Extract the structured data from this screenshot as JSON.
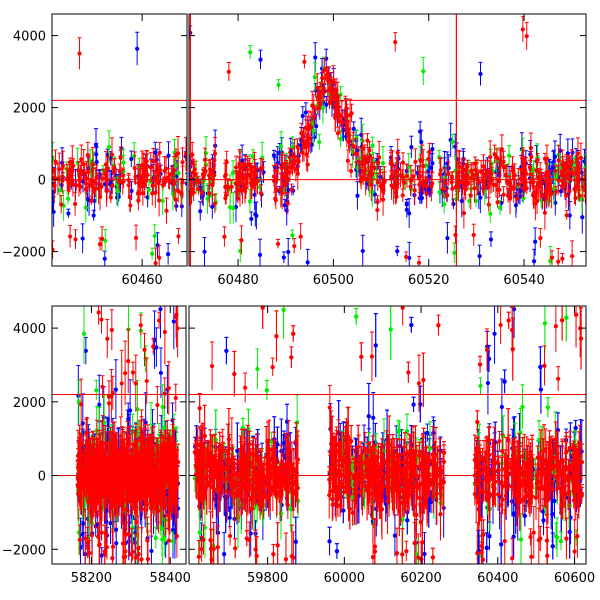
{
  "chart_data": [
    {
      "type": "scatter",
      "panel": "top",
      "title": "",
      "xlabel": "",
      "ylabel": "",
      "ylim": [
        -2400,
        4600
      ],
      "yticks": [
        -2000,
        0,
        2000,
        4000
      ],
      "x_tick_labels": [
        "60460",
        "60480",
        "60500",
        "60520",
        "60540"
      ],
      "y_tick_labels": [
        "−2000",
        "0",
        "2000",
        "4000"
      ],
      "segments": [
        {
          "xlim": [
            60440.5,
            60469.7
          ],
          "xticks": [
            60460
          ]
        },
        {
          "xlim": [
            60469.7,
            60553
          ],
          "xticks": [
            60480,
            60500,
            60520,
            60540
          ]
        }
      ],
      "reference_lines": {
        "horizontal": [
          0,
          2200
        ],
        "vertical": [
          60470,
          60525.8
        ]
      },
      "series_colors": [
        "#0000ff",
        "#00ee00",
        "#ff0000"
      ],
      "flare": {
        "peak_x": 60498.5,
        "peak_y": 2900,
        "rise_start_x": 60489,
        "decay_end_x": 60509
      }
    },
    {
      "type": "scatter",
      "panel": "bottom",
      "title": "",
      "xlabel": "",
      "ylabel": "",
      "ylim": [
        -2400,
        4600
      ],
      "yticks": [
        -2000,
        0,
        2000,
        4000
      ],
      "x_tick_labels": [
        "58200",
        "58400",
        "59800",
        "60000",
        "60200",
        "60400",
        "60600"
      ],
      "y_tick_labels": [
        "−2000",
        "0",
        "2000",
        "4000"
      ],
      "segments": [
        {
          "xlim": [
            58100,
            58440
          ],
          "xticks": [
            58200,
            58400
          ],
          "data_range": [
            58165,
            58420
          ]
        },
        {
          "xlim": [
            59595,
            60630
          ],
          "xticks": [
            59800,
            60000,
            60200,
            60400,
            60600
          ],
          "data_range": [
            59610,
            60620
          ],
          "gaps": [
            [
              59880,
              59960
            ],
            [
              60260,
              60340
            ]
          ]
        }
      ],
      "reference_lines": {
        "horizontal": [
          0,
          2200
        ]
      },
      "series_colors": [
        "#0000ff",
        "#00ee00",
        "#ff0000"
      ]
    }
  ]
}
